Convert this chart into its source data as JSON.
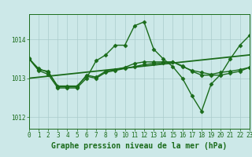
{
  "title": "Graphe pression niveau de la mer (hPa)",
  "bg_color": "#cce8e8",
  "line_color": "#1a6b1a",
  "grid_color": "#aacccc",
  "xlim": [
    0,
    23
  ],
  "ylim": [
    1011.7,
    1014.65
  ],
  "yticks": [
    1012,
    1013,
    1014
  ],
  "xticks": [
    0,
    1,
    2,
    3,
    4,
    5,
    6,
    7,
    8,
    9,
    10,
    11,
    12,
    13,
    14,
    15,
    16,
    17,
    18,
    19,
    20,
    21,
    22,
    23
  ],
  "series": [
    {
      "x": [
        0,
        1,
        2,
        3,
        4,
        5,
        6,
        7,
        8,
        9,
        10,
        11,
        12,
        13,
        14,
        15,
        16,
        17,
        18,
        19,
        20,
        21,
        22,
        23
      ],
      "y": [
        1013.5,
        1013.2,
        1013.1,
        1012.75,
        1012.75,
        1012.75,
        1013.0,
        1013.45,
        1013.6,
        1013.85,
        1013.85,
        1014.35,
        1014.45,
        1013.75,
        1013.5,
        1013.3,
        1013.0,
        1012.55,
        1012.15,
        1012.85,
        1013.1,
        1013.5,
        1013.85,
        1014.1
      ],
      "marker": "D",
      "markersize": 2.5,
      "linewidth": 1.0
    },
    {
      "x": [
        0,
        1,
        2,
        3,
        4,
        5,
        6,
        7,
        8,
        9,
        10,
        11,
        12,
        13,
        14,
        15,
        16,
        17,
        18,
        19,
        20,
        21,
        22,
        23
      ],
      "y": [
        1013.5,
        1013.25,
        1013.15,
        1012.8,
        1012.8,
        1012.8,
        1013.05,
        1013.0,
        1013.15,
        1013.2,
        1013.25,
        1013.3,
        1013.35,
        1013.38,
        1013.4,
        1013.42,
        1013.3,
        1013.2,
        1013.15,
        1013.1,
        1013.15,
        1013.18,
        1013.22,
        1013.28
      ],
      "marker": "D",
      "markersize": 2.5,
      "linewidth": 1.0
    },
    {
      "x": [
        0,
        1,
        2,
        3,
        4,
        5,
        6,
        7,
        8,
        9,
        10,
        11,
        12,
        13,
        14,
        15,
        16,
        17,
        18,
        19,
        20,
        21,
        22,
        23
      ],
      "y": [
        1013.52,
        1013.22,
        1013.18,
        1012.78,
        1012.78,
        1012.78,
        1013.08,
        1013.03,
        1013.18,
        1013.22,
        1013.28,
        1013.38,
        1013.42,
        1013.42,
        1013.42,
        1013.42,
        1013.32,
        1013.18,
        1013.08,
        1013.08,
        1013.08,
        1013.13,
        1013.18,
        1013.28
      ],
      "marker": "D",
      "markersize": 2.5,
      "linewidth": 1.0
    },
    {
      "x": [
        0,
        23
      ],
      "y": [
        1013.0,
        1013.6
      ],
      "marker": null,
      "markersize": 0,
      "linewidth": 1.3
    }
  ],
  "title_fontsize": 7.0,
  "tick_fontsize": 5.5,
  "tick_color": "#1a6b1a",
  "title_color": "#1a6b1a"
}
